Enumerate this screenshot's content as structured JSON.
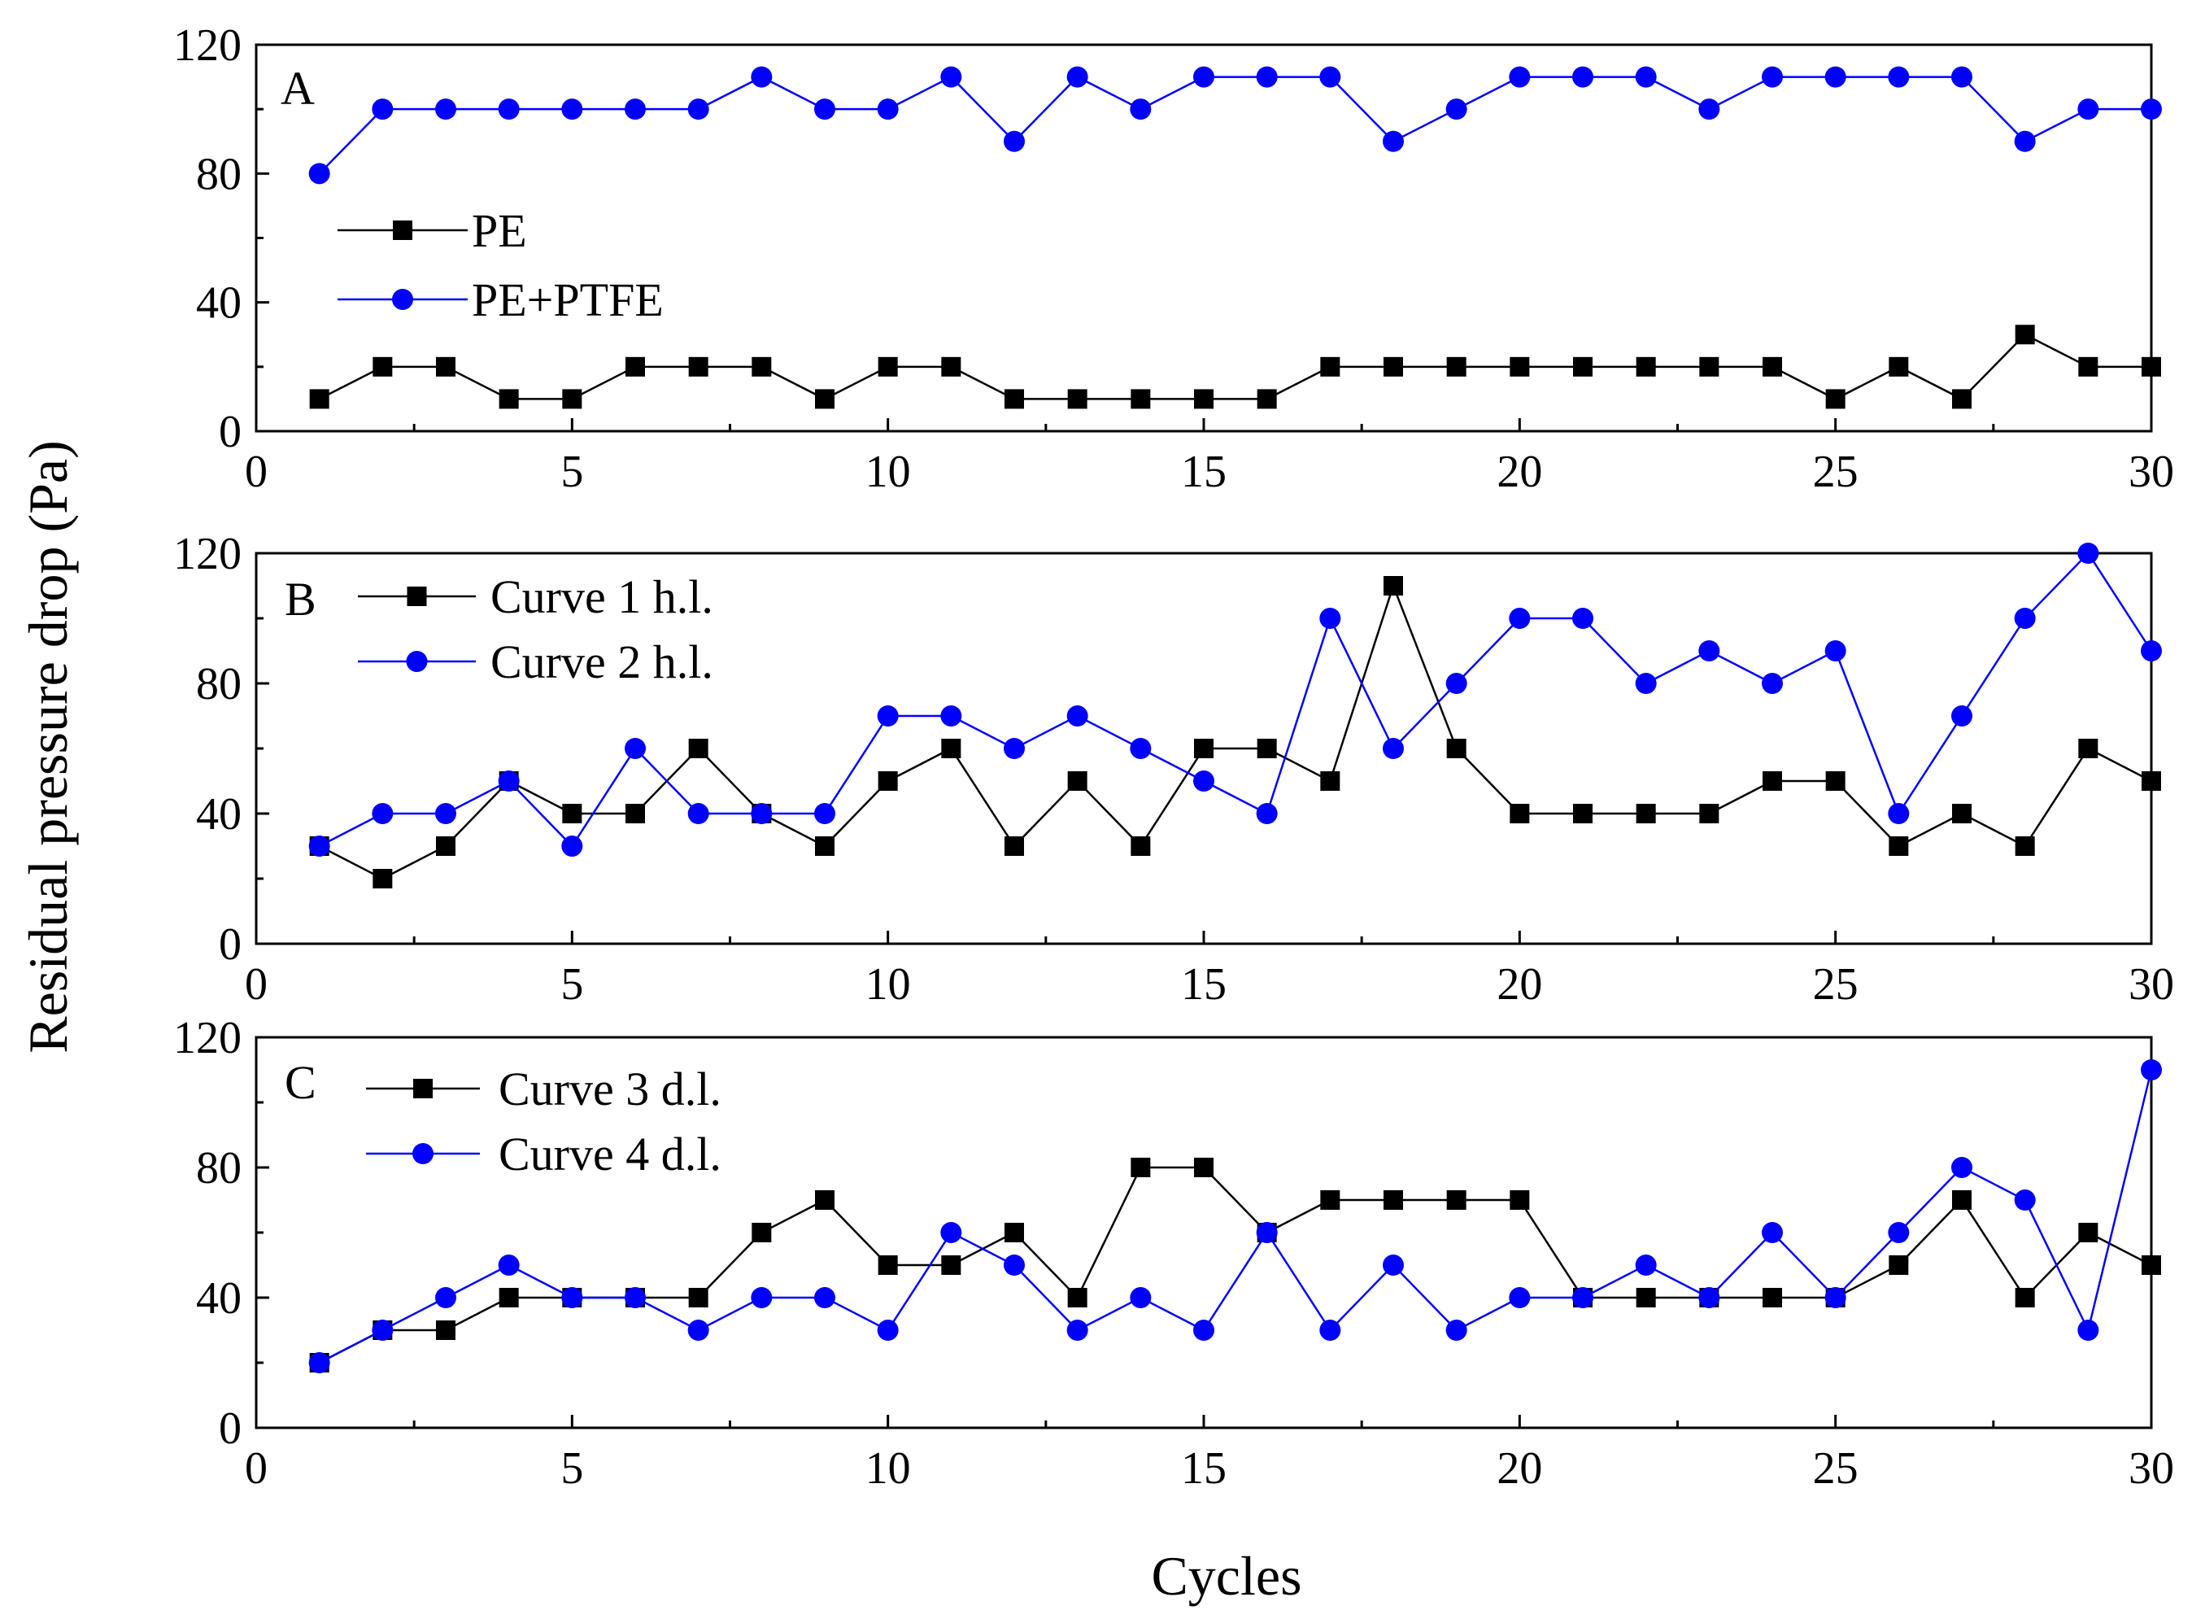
{
  "figure": {
    "ylabel": "Residual pressure drop (Pa)",
    "xlabel": "Cycles"
  },
  "chart_data": [
    {
      "type": "line",
      "panel_label": "A",
      "x": [
        1,
        2,
        3,
        4,
        5,
        6,
        7,
        8,
        9,
        10,
        11,
        12,
        13,
        14,
        15,
        16,
        17,
        18,
        19,
        20,
        21,
        22,
        23,
        24,
        25,
        26,
        27,
        28,
        29,
        30
      ],
      "xlim": [
        0,
        30
      ],
      "ylim": [
        0,
        120
      ],
      "xticks": [
        0,
        5,
        10,
        15,
        20,
        25,
        30
      ],
      "yticks": [
        0,
        40,
        80,
        120
      ],
      "legend_position": "left",
      "series": [
        {
          "name": "PE",
          "color": "#000000",
          "marker": "square",
          "values": [
            10,
            20,
            20,
            10,
            10,
            20,
            20,
            20,
            10,
            20,
            20,
            10,
            10,
            10,
            10,
            10,
            20,
            20,
            20,
            20,
            20,
            20,
            20,
            20,
            10,
            20,
            10,
            30,
            20,
            20
          ]
        },
        {
          "name": "PE+PTFE",
          "color": "#0000ff",
          "marker": "circle",
          "values": [
            80,
            100,
            100,
            100,
            100,
            100,
            100,
            110,
            100,
            100,
            110,
            90,
            110,
            100,
            110,
            110,
            110,
            90,
            100,
            110,
            110,
            110,
            100,
            110,
            110,
            110,
            110,
            90,
            100,
            100
          ]
        }
      ]
    },
    {
      "type": "line",
      "panel_label": "B",
      "x": [
        1,
        2,
        3,
        4,
        5,
        6,
        7,
        8,
        9,
        10,
        11,
        12,
        13,
        14,
        15,
        16,
        17,
        18,
        19,
        20,
        21,
        22,
        23,
        24,
        25,
        26,
        27,
        28,
        29,
        30
      ],
      "xlim": [
        0,
        30
      ],
      "ylim": [
        0,
        120
      ],
      "xticks": [
        0,
        5,
        10,
        15,
        20,
        25,
        30
      ],
      "yticks": [
        0,
        40,
        80,
        120
      ],
      "legend_position": "top-left",
      "series": [
        {
          "name": "Curve 1 h.l.",
          "color": "#000000",
          "marker": "square",
          "values": [
            30,
            20,
            30,
            50,
            40,
            40,
            60,
            40,
            30,
            50,
            60,
            30,
            50,
            30,
            60,
            60,
            50,
            110,
            60,
            40,
            40,
            40,
            40,
            50,
            50,
            30,
            40,
            30,
            60,
            50
          ]
        },
        {
          "name": "Curve 2 h.l.",
          "color": "#0000ff",
          "marker": "circle",
          "values": [
            30,
            40,
            40,
            50,
            30,
            60,
            40,
            40,
            40,
            70,
            70,
            60,
            70,
            60,
            50,
            40,
            100,
            60,
            80,
            100,
            100,
            80,
            90,
            80,
            90,
            40,
            70,
            100,
            120,
            90
          ]
        }
      ]
    },
    {
      "type": "line",
      "panel_label": "C",
      "x": [
        1,
        2,
        3,
        4,
        5,
        6,
        7,
        8,
        9,
        10,
        11,
        12,
        13,
        14,
        15,
        16,
        17,
        18,
        19,
        20,
        21,
        22,
        23,
        24,
        25,
        26,
        27,
        28,
        29,
        30
      ],
      "xlim": [
        0,
        30
      ],
      "ylim": [
        0,
        120
      ],
      "xticks": [
        0,
        5,
        10,
        15,
        20,
        25,
        30
      ],
      "yticks": [
        0,
        40,
        80,
        120
      ],
      "legend_position": "top-left",
      "series": [
        {
          "name": "Curve 3 d.l.",
          "color": "#000000",
          "marker": "square",
          "values": [
            20,
            30,
            30,
            40,
            40,
            40,
            40,
            60,
            70,
            50,
            50,
            60,
            40,
            80,
            80,
            60,
            70,
            70,
            70,
            70,
            40,
            40,
            40,
            40,
            40,
            50,
            70,
            40,
            60,
            50
          ]
        },
        {
          "name": "Curve 4 d.l.",
          "color": "#0000ff",
          "marker": "circle",
          "values": [
            20,
            30,
            40,
            50,
            40,
            40,
            30,
            40,
            40,
            30,
            60,
            50,
            30,
            40,
            30,
            60,
            30,
            50,
            30,
            40,
            40,
            50,
            40,
            60,
            40,
            60,
            80,
            70,
            30,
            110
          ]
        }
      ]
    }
  ]
}
